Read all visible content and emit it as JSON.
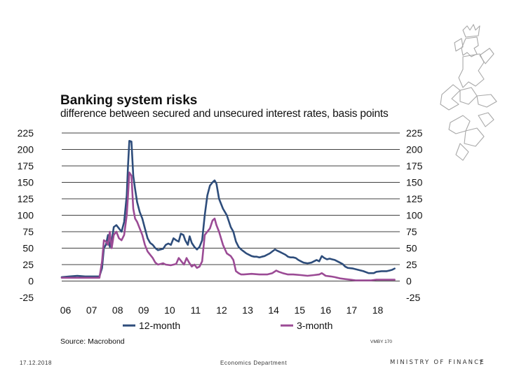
{
  "slide": {
    "footer_date": "17.12.2018",
    "footer_dept": "Economics Department",
    "footer_org": "MINISTRY OF FINANCE",
    "page_number": "7",
    "source": "Source: Macrobond",
    "chart_id": "VMBY 170"
  },
  "crest_icon": "finnish-lion-coat-of-arms-icon",
  "chart_data": {
    "type": "line",
    "title": "Banking system risks",
    "subtitle": "difference between secured and unsecured interest rates, basis points",
    "ylim": [
      -25,
      225
    ],
    "yticks": [
      "225",
      "200",
      "175",
      "150",
      "125",
      "100",
      "75",
      "50",
      "25",
      "0",
      "-25"
    ],
    "xlim": [
      2006.0,
      2019.0
    ],
    "xticks": [
      "06",
      "07",
      "08",
      "09",
      "10",
      "11",
      "12",
      "13",
      "14",
      "15",
      "16",
      "17",
      "18"
    ],
    "grid": true,
    "legend_position": "bottom",
    "series": [
      {
        "name": "12-month",
        "color": "#2e4d7b",
        "points": [
          [
            2006.0,
            6
          ],
          [
            2006.3,
            7
          ],
          [
            2006.6,
            8
          ],
          [
            2006.9,
            7
          ],
          [
            2007.2,
            7
          ],
          [
            2007.45,
            7
          ],
          [
            2007.55,
            20
          ],
          [
            2007.62,
            50
          ],
          [
            2007.7,
            55
          ],
          [
            2007.78,
            70
          ],
          [
            2007.85,
            52
          ],
          [
            2007.92,
            60
          ],
          [
            2008.0,
            82
          ],
          [
            2008.1,
            85
          ],
          [
            2008.2,
            80
          ],
          [
            2008.3,
            75
          ],
          [
            2008.4,
            90
          ],
          [
            2008.5,
            130
          ],
          [
            2008.55,
            175
          ],
          [
            2008.6,
            213
          ],
          [
            2008.68,
            212
          ],
          [
            2008.75,
            160
          ],
          [
            2008.82,
            140
          ],
          [
            2008.9,
            120
          ],
          [
            2009.0,
            105
          ],
          [
            2009.1,
            95
          ],
          [
            2009.2,
            80
          ],
          [
            2009.3,
            65
          ],
          [
            2009.4,
            58
          ],
          [
            2009.5,
            55
          ],
          [
            2009.6,
            50
          ],
          [
            2009.7,
            47
          ],
          [
            2009.8,
            48
          ],
          [
            2009.9,
            49
          ],
          [
            2010.0,
            55
          ],
          [
            2010.1,
            57
          ],
          [
            2010.2,
            55
          ],
          [
            2010.3,
            65
          ],
          [
            2010.4,
            62
          ],
          [
            2010.5,
            60
          ],
          [
            2010.58,
            72
          ],
          [
            2010.68,
            70
          ],
          [
            2010.75,
            62
          ],
          [
            2010.85,
            55
          ],
          [
            2010.92,
            68
          ],
          [
            2011.0,
            58
          ],
          [
            2011.1,
            52
          ],
          [
            2011.2,
            48
          ],
          [
            2011.3,
            52
          ],
          [
            2011.4,
            62
          ],
          [
            2011.5,
            100
          ],
          [
            2011.6,
            130
          ],
          [
            2011.7,
            145
          ],
          [
            2011.8,
            150
          ],
          [
            2011.88,
            153
          ],
          [
            2011.95,
            148
          ],
          [
            2012.05,
            125
          ],
          [
            2012.2,
            110
          ],
          [
            2012.35,
            100
          ],
          [
            2012.5,
            82
          ],
          [
            2012.6,
            75
          ],
          [
            2012.7,
            60
          ],
          [
            2012.8,
            52
          ],
          [
            2012.9,
            48
          ],
          [
            2013.0,
            45
          ],
          [
            2013.1,
            42
          ],
          [
            2013.2,
            40
          ],
          [
            2013.3,
            38
          ],
          [
            2013.4,
            37
          ],
          [
            2013.5,
            37
          ],
          [
            2013.6,
            36
          ],
          [
            2013.7,
            37
          ],
          [
            2013.8,
            38
          ],
          [
            2013.9,
            40
          ],
          [
            2014.0,
            42
          ],
          [
            2014.2,
            48
          ],
          [
            2014.3,
            46
          ],
          [
            2014.4,
            44
          ],
          [
            2014.5,
            42
          ],
          [
            2014.6,
            40
          ],
          [
            2014.7,
            37
          ],
          [
            2014.8,
            36
          ],
          [
            2014.9,
            36
          ],
          [
            2015.0,
            35
          ],
          [
            2015.1,
            32
          ],
          [
            2015.2,
            30
          ],
          [
            2015.3,
            28
          ],
          [
            2015.45,
            27
          ],
          [
            2015.6,
            28
          ],
          [
            2015.7,
            30
          ],
          [
            2015.8,
            32
          ],
          [
            2015.9,
            30
          ],
          [
            2016.0,
            38
          ],
          [
            2016.1,
            35
          ],
          [
            2016.2,
            33
          ],
          [
            2016.3,
            34
          ],
          [
            2016.4,
            33
          ],
          [
            2016.5,
            32
          ],
          [
            2016.6,
            30
          ],
          [
            2016.7,
            28
          ],
          [
            2016.8,
            26
          ],
          [
            2016.9,
            22
          ],
          [
            2017.0,
            20
          ],
          [
            2017.2,
            19
          ],
          [
            2017.4,
            17
          ],
          [
            2017.6,
            15
          ],
          [
            2017.8,
            12
          ],
          [
            2018.0,
            12
          ],
          [
            2018.1,
            14
          ],
          [
            2018.3,
            15
          ],
          [
            2018.5,
            15
          ],
          [
            2018.6,
            16
          ],
          [
            2018.7,
            17
          ],
          [
            2018.8,
            19
          ]
        ]
      },
      {
        "name": "3-month",
        "color": "#9b4b95",
        "points": [
          [
            2006.0,
            5
          ],
          [
            2006.3,
            5
          ],
          [
            2006.6,
            5
          ],
          [
            2006.9,
            5
          ],
          [
            2007.2,
            5
          ],
          [
            2007.45,
            5
          ],
          [
            2007.55,
            30
          ],
          [
            2007.62,
            62
          ],
          [
            2007.7,
            60
          ],
          [
            2007.78,
            55
          ],
          [
            2007.85,
            75
          ],
          [
            2007.92,
            50
          ],
          [
            2008.0,
            70
          ],
          [
            2008.1,
            75
          ],
          [
            2008.2,
            65
          ],
          [
            2008.3,
            62
          ],
          [
            2008.4,
            70
          ],
          [
            2008.5,
            100
          ],
          [
            2008.55,
            130
          ],
          [
            2008.6,
            165
          ],
          [
            2008.68,
            160
          ],
          [
            2008.75,
            110
          ],
          [
            2008.82,
            95
          ],
          [
            2008.9,
            90
          ],
          [
            2009.0,
            80
          ],
          [
            2009.1,
            70
          ],
          [
            2009.2,
            55
          ],
          [
            2009.3,
            45
          ],
          [
            2009.4,
            40
          ],
          [
            2009.5,
            35
          ],
          [
            2009.6,
            28
          ],
          [
            2009.7,
            25
          ],
          [
            2009.8,
            26
          ],
          [
            2009.9,
            27
          ],
          [
            2010.0,
            25
          ],
          [
            2010.2,
            24
          ],
          [
            2010.4,
            26
          ],
          [
            2010.5,
            35
          ],
          [
            2010.6,
            30
          ],
          [
            2010.7,
            25
          ],
          [
            2010.8,
            35
          ],
          [
            2010.9,
            28
          ],
          [
            2011.0,
            22
          ],
          [
            2011.1,
            25
          ],
          [
            2011.2,
            20
          ],
          [
            2011.3,
            22
          ],
          [
            2011.4,
            30
          ],
          [
            2011.5,
            70
          ],
          [
            2011.6,
            75
          ],
          [
            2011.7,
            80
          ],
          [
            2011.8,
            92
          ],
          [
            2011.88,
            95
          ],
          [
            2011.95,
            85
          ],
          [
            2012.05,
            75
          ],
          [
            2012.2,
            55
          ],
          [
            2012.35,
            42
          ],
          [
            2012.5,
            38
          ],
          [
            2012.6,
            32
          ],
          [
            2012.7,
            15
          ],
          [
            2012.8,
            12
          ],
          [
            2012.9,
            10
          ],
          [
            2013.0,
            10
          ],
          [
            2013.3,
            11
          ],
          [
            2013.6,
            10
          ],
          [
            2013.9,
            10
          ],
          [
            2014.1,
            12
          ],
          [
            2014.25,
            16
          ],
          [
            2014.35,
            14
          ],
          [
            2014.5,
            12
          ],
          [
            2014.7,
            10
          ],
          [
            2014.9,
            10
          ],
          [
            2015.2,
            9
          ],
          [
            2015.45,
            8
          ],
          [
            2015.7,
            9
          ],
          [
            2015.9,
            10
          ],
          [
            2016.0,
            12
          ],
          [
            2016.15,
            8
          ],
          [
            2016.35,
            7
          ],
          [
            2016.5,
            6
          ],
          [
            2016.7,
            4
          ],
          [
            2016.9,
            3
          ],
          [
            2017.1,
            2
          ],
          [
            2017.3,
            1
          ],
          [
            2017.6,
            1
          ],
          [
            2017.9,
            1
          ],
          [
            2018.1,
            2
          ],
          [
            2018.4,
            2
          ],
          [
            2018.8,
            2
          ]
        ]
      }
    ]
  }
}
